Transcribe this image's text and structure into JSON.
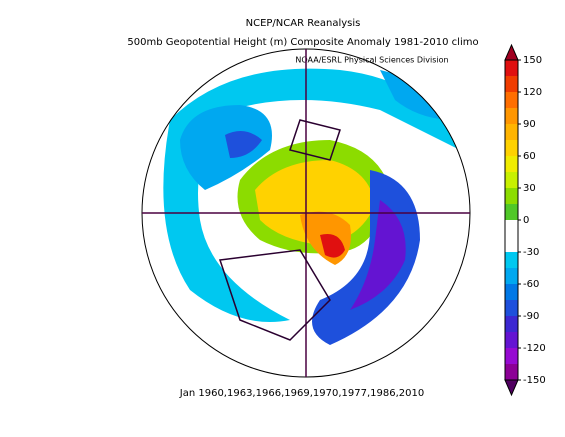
{
  "header": {
    "title": "NCEP/NCAR Reanalysis",
    "subtitle": "500mb Geopotential Height (m) Composite Anomaly 1981-2010 climo",
    "credit": "NOAA/ESRL Physical Sciences Division"
  },
  "footer": "Jan 1960,1963,1966,1969,1970,1977,1986,2010",
  "colorbar": {
    "lim": [
      -150,
      150
    ],
    "ticks": [
      150,
      120,
      90,
      60,
      30,
      0,
      -30,
      -60,
      -90,
      -120,
      -150
    ],
    "colors": [
      "#e01010",
      "#f03c00",
      "#ff6e00",
      "#ff9600",
      "#ffb400",
      "#ffd200",
      "#f0ec00",
      "#c8f000",
      "#8cdc00",
      "#50c828",
      "#ffffff",
      "#ffffff",
      "#00c8f0",
      "#00a8f0",
      "#0078e6",
      "#1e50dc",
      "#3c28d2",
      "#6414d2",
      "#960ad2",
      "#8c0096"
    ]
  }
}
